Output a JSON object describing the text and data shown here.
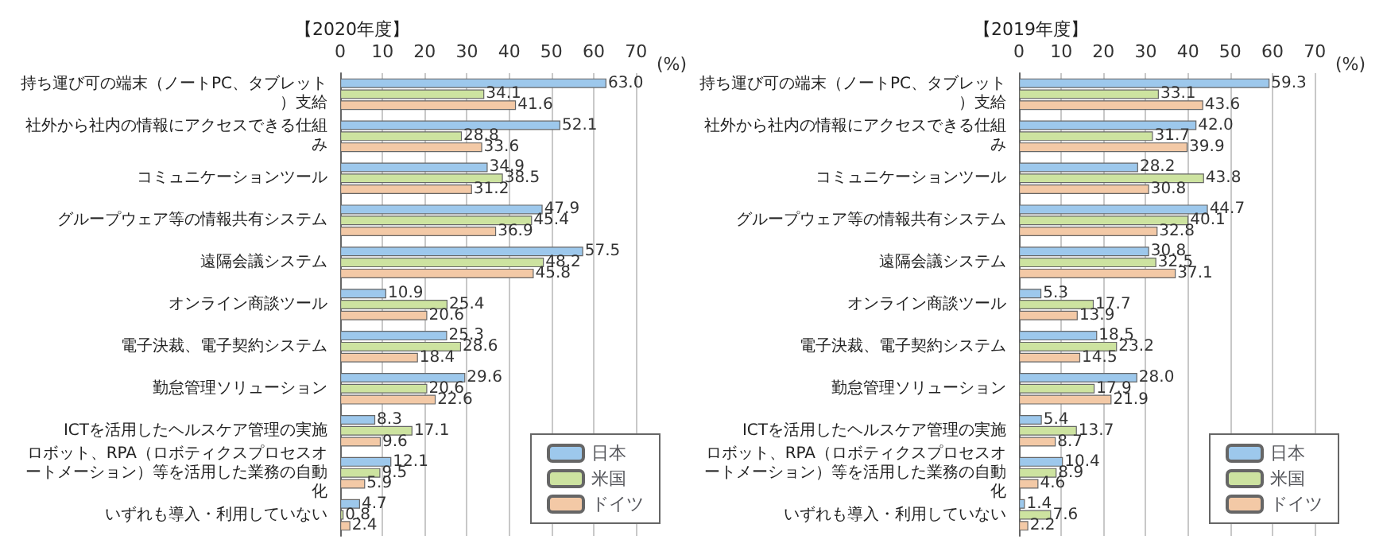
{
  "chart_data": [
    {
      "type": "bar",
      "orientation": "horizontal",
      "title": "【2020年度】",
      "xlabel": "(%)",
      "categories": [
        "持ち運び可の端末（ノートPC、タブレット）支給",
        "社外から社内の情報にアクセスできる仕組み",
        "コミュニケーションツール",
        "グループウェア等の情報共有システム",
        "遠隔会議システム",
        "オンライン商談ツール",
        "電子決裁、電子契約システム",
        "勤怠管理ソリューション",
        "ICTを活用したヘルスケア管理の実施",
        "ロボット、RPA（ロボティクスプロセスオートメーション）等を活用した業務の自動化",
        "いずれも導入・利用していない"
      ],
      "series": [
        {
          "name": "日本",
          "color": "#9dc8ec",
          "values": [
            63.0,
            52.1,
            34.9,
            47.9,
            57.5,
            10.9,
            25.3,
            29.6,
            8.3,
            12.1,
            4.7
          ],
          "value_labels": [
            "63.0",
            "52.1",
            "34.9",
            "47.9",
            "57.5",
            "10.9",
            "25.3",
            "29.6",
            "8.3",
            "12.1",
            "4.7"
          ]
        },
        {
          "name": "米国",
          "color": "#cde3a0",
          "values": [
            34.1,
            28.8,
            38.5,
            45.4,
            48.2,
            25.4,
            28.6,
            20.6,
            17.1,
            9.5,
            0.8
          ],
          "value_labels": [
            "34.1",
            "28.8",
            "38.5",
            "45.4",
            "48.2",
            "25.4",
            "28.6",
            "20.6",
            "17.1",
            "9.5",
            "0.8"
          ]
        },
        {
          "name": "ドイツ",
          "color": "#f3c9a6",
          "values": [
            41.6,
            33.6,
            31.2,
            36.9,
            45.8,
            20.6,
            18.4,
            22.6,
            9.6,
            5.9,
            2.4
          ],
          "value_labels": [
            "41.6",
            "33.6",
            "31.2",
            "36.9",
            "45.8",
            "20.6",
            "18.4",
            "22.6",
            "9.6",
            "5.9",
            "2.4"
          ]
        }
      ],
      "xlim": [
        0,
        70
      ],
      "xticks": [
        0,
        10,
        20,
        30,
        40,
        50,
        60,
        70
      ],
      "grid": "x",
      "legend": "bottom right"
    },
    {
      "type": "bar",
      "orientation": "horizontal",
      "title": "【2019年度】",
      "xlabel": "(%)",
      "categories": [
        "持ち運び可の端末（ノートPC、タブレット）支給",
        "社外から社内の情報にアクセスできる仕組み",
        "コミュニケーションツール",
        "グループウェア等の情報共有システム",
        "遠隔会議システム",
        "オンライン商談ツール",
        "電子決裁、電子契約システム",
        "勤怠管理ソリューション",
        "ICTを活用したヘルスケア管理の実施",
        "ロボット、RPA（ロボティクスプロセスオートメーション）等を活用した業務の自動化",
        "いずれも導入・利用していない"
      ],
      "series": [
        {
          "name": "日本",
          "color": "#9dc8ec",
          "values": [
            59.3,
            42.0,
            28.2,
            44.7,
            30.8,
            5.3,
            18.5,
            28.0,
            5.4,
            10.4,
            1.4
          ],
          "value_labels": [
            "59.3",
            "42.0",
            "28.2",
            "44.7",
            "30.8",
            "5.3",
            "18.5",
            "28.0",
            "5.4",
            "10.4",
            "1.4"
          ]
        },
        {
          "name": "米国",
          "color": "#cde3a0",
          "values": [
            33.1,
            31.7,
            43.8,
            40.1,
            32.5,
            17.7,
            23.2,
            17.9,
            13.7,
            8.9,
            7.6
          ],
          "value_labels": [
            "33.1",
            "31.7",
            "43.8",
            "40.1",
            "32.5",
            "17.7",
            "23.2",
            "17.9",
            "13.7",
            "8.9",
            "7.6"
          ]
        },
        {
          "name": "ドイツ",
          "color": "#f3c9a6",
          "values": [
            43.6,
            39.9,
            30.8,
            32.8,
            37.1,
            13.9,
            14.5,
            21.9,
            8.7,
            4.6,
            2.2
          ],
          "value_labels": [
            "43.6",
            "39.9",
            "30.8",
            "32.8",
            "37.1",
            "13.9",
            "14.5",
            "21.9",
            "8.7",
            "4.6",
            "2.2"
          ]
        }
      ],
      "xlim": [
        0,
        70
      ],
      "xticks": [
        0,
        10,
        20,
        30,
        40,
        50,
        60,
        70
      ],
      "grid": "x",
      "legend": "bottom right"
    }
  ]
}
